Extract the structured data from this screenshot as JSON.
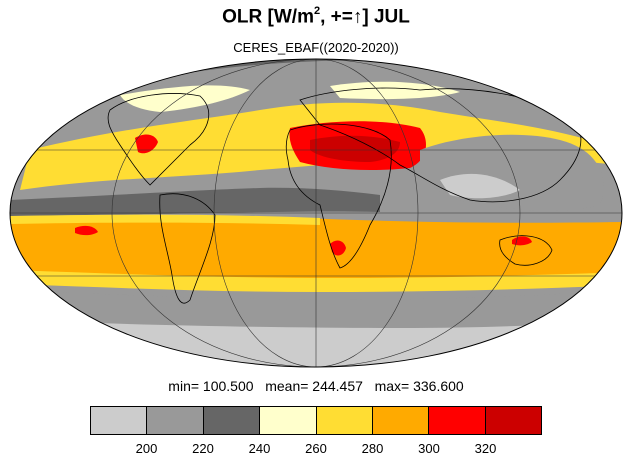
{
  "title_prefix": "OLR [W/m",
  "title_sup": "2",
  "title_mid": ", +=",
  "title_arrow": "↑",
  "title_suffix": "] JUL",
  "subtitle": "CERES_EBAF((2020-2020))",
  "stats": {
    "min_label": "min=",
    "min": "100.500",
    "mean_label": "mean=",
    "mean": "244.457",
    "max_label": "max=",
    "max": "336.600"
  },
  "colorbar": {
    "colors": [
      "#cccccc",
      "#999999",
      "#666666",
      "#ffffcc",
      "#ffdd33",
      "#ffaa00",
      "#ff0000",
      "#cc0000"
    ],
    "ticks": [
      "200",
      "220",
      "240",
      "260",
      "280",
      "300",
      "320"
    ]
  },
  "map_colors": {
    "ocean_bg": "#999999",
    "polar_south": "#cccccc",
    "polar_north": "#666666",
    "subtropic": "#ffaa00",
    "warm_band": "#ffdd33",
    "pale": "#ffffcc",
    "convective": "#666666",
    "hot": "#ff0000",
    "hottest": "#cc0000"
  }
}
